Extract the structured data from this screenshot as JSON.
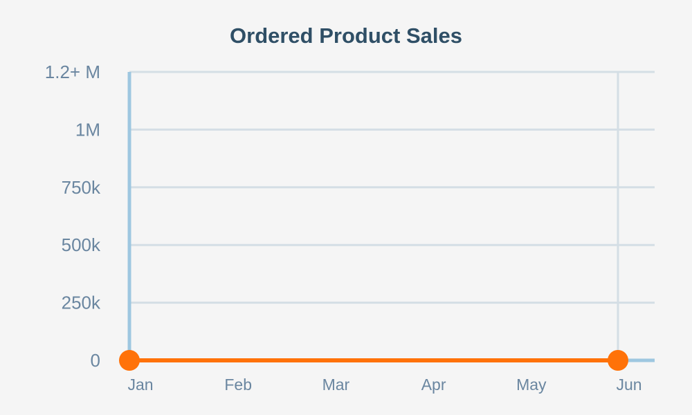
{
  "chart_data": {
    "type": "line",
    "title": "Ordered Product Sales",
    "xlabel": "",
    "ylabel": "",
    "categories": [
      "Jan",
      "Feb",
      "Mar",
      "Apr",
      "May",
      "Jun"
    ],
    "series": [
      {
        "values": [
          0,
          0,
          0,
          0,
          0,
          0
        ],
        "markers_at": [
          "Jan",
          "Jun"
        ]
      }
    ],
    "y_ticks": [
      {
        "value": 0,
        "label": "0"
      },
      {
        "value": 250000,
        "label": "250k"
      },
      {
        "value": 500000,
        "label": "500k"
      },
      {
        "value": 750000,
        "label": "750k"
      },
      {
        "value": 1000000,
        "label": "1M"
      },
      {
        "value": 1250000,
        "label": "1.2+ M"
      }
    ],
    "ylim": [
      0,
      1250000
    ],
    "grid": true,
    "legend": "none",
    "colors": {
      "series": "#ff7209",
      "axis": "#9ec7e0",
      "grid": "#d4dee5",
      "tick_text": "#6a86a0",
      "title": "#2f4f66"
    }
  }
}
